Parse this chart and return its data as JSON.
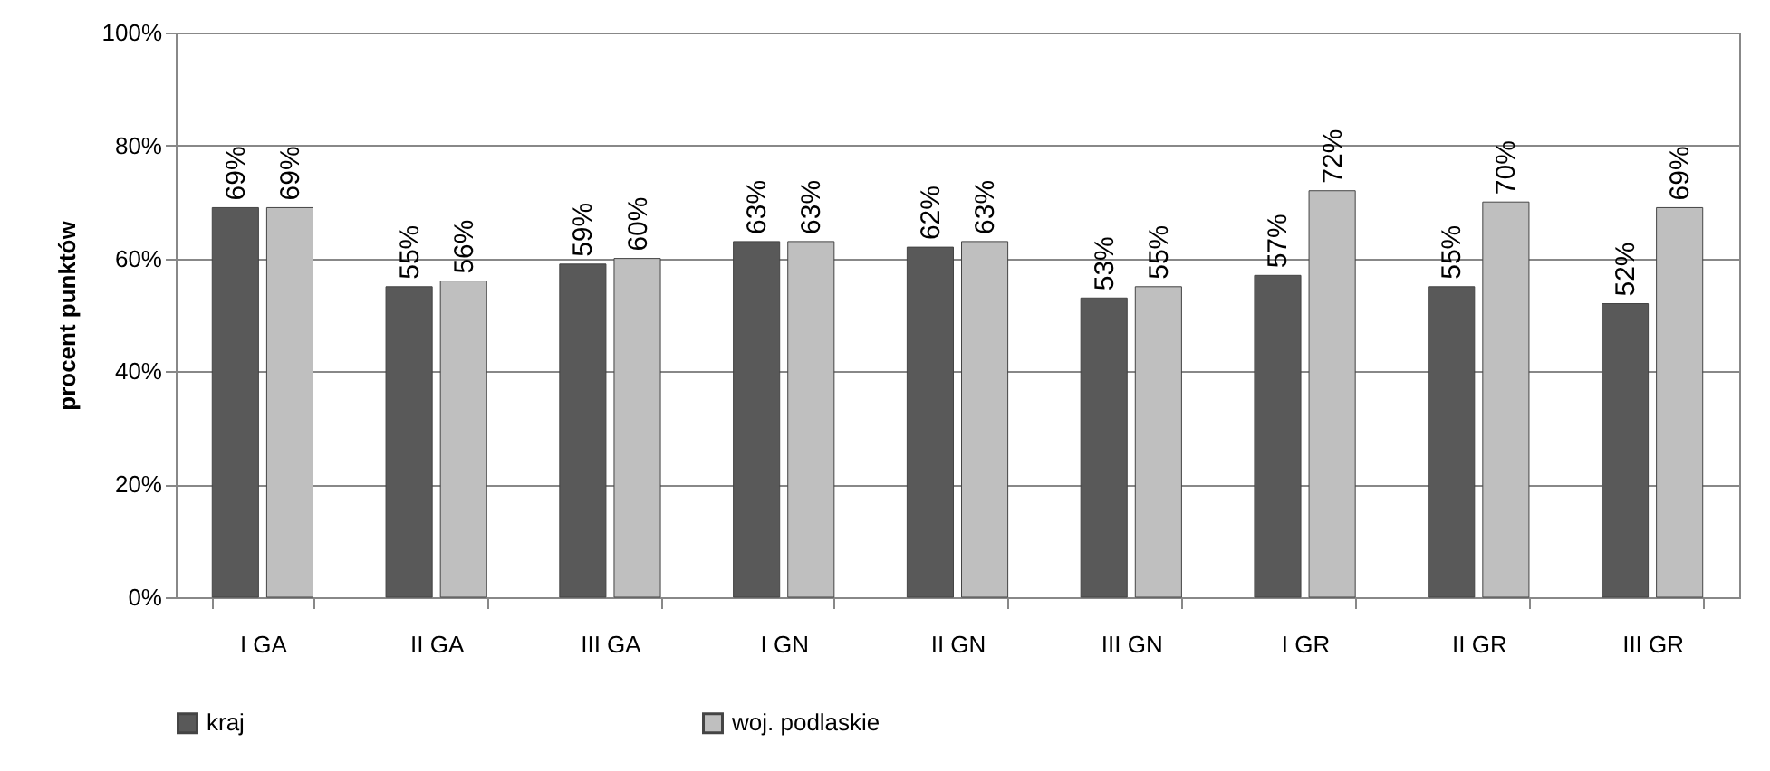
{
  "chart_data": {
    "type": "bar",
    "ylabel": "procent punktów",
    "categories": [
      "I GA",
      "II GA",
      "III GA",
      "I GN",
      "II GN",
      "III GN",
      "I GR",
      "II GR",
      "III GR"
    ],
    "series": [
      {
        "name": "kraj",
        "color": "#595959",
        "values": [
          69,
          55,
          59,
          63,
          62,
          53,
          57,
          55,
          52
        ],
        "value_labels": [
          "69%",
          "55%",
          "59%",
          "63%",
          "62%",
          "53%",
          "57%",
          "55%",
          "52%"
        ]
      },
      {
        "name": "woj. podlaskie",
        "color": "#bfbfbf",
        "values": [
          69,
          56,
          60,
          63,
          63,
          55,
          72,
          70,
          69
        ],
        "value_labels": [
          "69%",
          "56%",
          "60%",
          "63%",
          "63%",
          "55%",
          "72%",
          "70%",
          "69%"
        ]
      }
    ],
    "ylim": [
      0,
      100
    ],
    "yticks": [
      {
        "value": 0,
        "label": "0%"
      },
      {
        "value": 20,
        "label": "20%"
      },
      {
        "value": 40,
        "label": "40%"
      },
      {
        "value": 60,
        "label": "60%"
      },
      {
        "value": 80,
        "label": "80%"
      },
      {
        "value": 100,
        "label": "100%"
      }
    ],
    "grid": "y",
    "legend": "bottom"
  }
}
